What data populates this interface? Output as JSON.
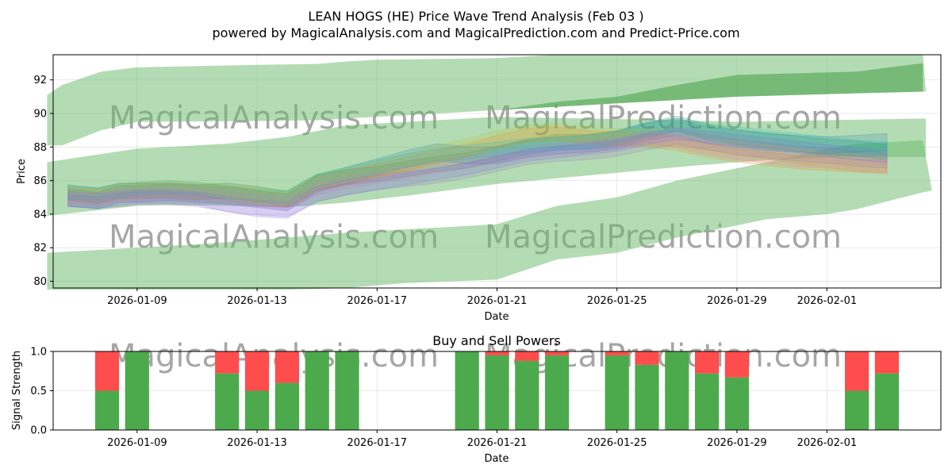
{
  "chart_data": [
    {
      "type": "area",
      "title": "LEAN HOGS (HE) Price Wave Trend Analysis (Feb 03 )",
      "subtitle": "powered by MagicalAnalysis.com and MagicalPrediction.com and Predict-Price.com",
      "xlabel": "Date",
      "ylabel": "Price",
      "xlim": [
        -2.8,
        26.8
      ],
      "ylim": [
        79.6,
        93.5
      ],
      "x_ticks": [
        {
          "label": "2026-01-09",
          "value": 0
        },
        {
          "label": "2026-01-13",
          "value": 4
        },
        {
          "label": "2026-01-17",
          "value": 8
        },
        {
          "label": "2026-01-21",
          "value": 12
        },
        {
          "label": "2026-01-25",
          "value": 16
        },
        {
          "label": "2026-01-29",
          "value": 20
        },
        {
          "label": "2026-02-01",
          "value": 23
        }
      ],
      "y_ticks": [
        80,
        82,
        84,
        86,
        88,
        90,
        92
      ],
      "watermarks": [
        "MagicalAnalysis.com",
        "MagicalPrediction.com",
        "MagicalAnalysis.com",
        "MagicalPrediction.com"
      ],
      "bands": [
        {
          "name": "upper-band",
          "color": "#6ab96a",
          "opacity": 0.5,
          "x": [
            -3,
            -2.5,
            -1.2,
            0,
            4,
            6,
            7,
            8,
            12,
            14,
            16,
            18,
            20,
            24,
            26.2,
            26.3
          ],
          "upper": [
            91.1,
            91.7,
            92.5,
            92.75,
            92.9,
            92.95,
            93.1,
            93.2,
            93.3,
            93.5,
            93.5,
            93.5,
            93.5,
            93.5,
            93.5,
            91.3
          ],
          "lower": [
            88.1,
            88.1,
            89.0,
            89.5,
            89.55,
            89.6,
            89.7,
            89.8,
            90.2,
            90.4,
            90.6,
            90.8,
            91.0,
            91.2,
            91.3,
            91.3
          ]
        },
        {
          "name": "upper-band-dark",
          "color": "#4ea34e",
          "opacity": 0.6,
          "x": [
            12,
            14,
            16,
            18,
            20,
            24,
            26.2
          ],
          "upper": [
            90.2,
            90.7,
            91.0,
            91.7,
            92.3,
            92.5,
            93.0
          ],
          "lower": [
            90.2,
            90.4,
            90.6,
            90.8,
            91.0,
            91.2,
            91.3
          ]
        },
        {
          "name": "middle-band",
          "color": "#6ab96a",
          "opacity": 0.5,
          "x": [
            -3,
            -1.5,
            0,
            1,
            3,
            5,
            7,
            9,
            12,
            15,
            18,
            20,
            23,
            26.3
          ],
          "upper": [
            87.1,
            87.5,
            87.9,
            88.0,
            88.2,
            88.6,
            89.3,
            89.5,
            89.8,
            89.7,
            89.6,
            89.5,
            89.6,
            89.7
          ],
          "lower": [
            83.9,
            84.2,
            84.5,
            84.55,
            84.5,
            84.4,
            84.7,
            85.1,
            85.8,
            86.3,
            86.8,
            87.1,
            87.4,
            87.4
          ]
        },
        {
          "name": "lower-band",
          "color": "#6ab96a",
          "opacity": 0.5,
          "x": [
            -3,
            -1,
            0,
            2,
            5,
            7,
            9,
            12,
            14,
            16,
            18,
            21,
            23,
            24,
            26.2,
            26.5
          ],
          "upper": [
            81.7,
            81.9,
            82.0,
            82.2,
            82.6,
            82.9,
            83.1,
            83.4,
            84.5,
            85.0,
            86.0,
            87.1,
            87.9,
            88.2,
            88.4,
            85.4
          ],
          "lower": [
            79.5,
            79.5,
            79.5,
            79.5,
            79.5,
            79.6,
            79.9,
            80.1,
            81.3,
            81.7,
            82.6,
            83.7,
            84.0,
            84.3,
            85.3,
            85.4
          ]
        }
      ],
      "trend_x": [
        -2.3,
        -1.3,
        -0.6,
        0,
        1,
        2,
        3,
        4,
        5,
        6,
        7,
        8,
        9,
        10,
        11,
        12,
        13,
        14,
        15,
        16,
        17,
        18,
        19,
        20,
        21,
        22,
        23,
        24,
        25
      ],
      "trend_series": [
        {
          "color": "#2e7d32",
          "spread": 0.45,
          "values": [
            85.3,
            85.1,
            85.4,
            85.4,
            85.4,
            85.3,
            85.4,
            85.2,
            84.9,
            85.9,
            86.2,
            86.4,
            86.7,
            87.0,
            87.2,
            87.6,
            88.0,
            88.3,
            88.3,
            88.5,
            89.0,
            89.4,
            88.9,
            88.6,
            88.4,
            88.2,
            88.0,
            87.9,
            87.7
          ]
        },
        {
          "color": "#1f77b4",
          "spread": 0.5,
          "values": [
            85.0,
            84.8,
            85.2,
            85.2,
            85.3,
            85.2,
            85.1,
            84.9,
            84.7,
            85.8,
            86.3,
            86.8,
            87.3,
            87.7,
            87.5,
            87.5,
            87.9,
            88.1,
            88.2,
            88.4,
            88.9,
            89.2,
            88.7,
            88.5,
            88.3,
            88.2,
            88.1,
            88.2,
            88.3
          ]
        },
        {
          "color": "#bcbd22",
          "spread": 0.5,
          "values": [
            85.1,
            85.0,
            85.3,
            85.4,
            85.5,
            85.4,
            85.2,
            85.1,
            84.9,
            85.9,
            86.3,
            86.7,
            87.1,
            87.6,
            88.0,
            88.5,
            88.8,
            88.9,
            88.7,
            88.6,
            88.6,
            88.5,
            88.3,
            88.0,
            87.8,
            87.5,
            87.3,
            87.1,
            87.0
          ]
        },
        {
          "color": "#ff7f0e",
          "spread": 0.4,
          "values": [
            85.2,
            85.1,
            85.3,
            85.4,
            85.5,
            85.4,
            85.3,
            85.0,
            84.8,
            85.8,
            86.2,
            86.6,
            87.0,
            87.4,
            87.8,
            88.3,
            88.7,
            88.8,
            88.6,
            88.5,
            88.4,
            88.2,
            87.8,
            87.5,
            87.3,
            87.1,
            87.0,
            86.9,
            86.8
          ]
        },
        {
          "color": "#9467bd",
          "spread": 0.45,
          "values": [
            84.9,
            84.8,
            84.9,
            85.0,
            85.0,
            84.9,
            84.6,
            84.4,
            84.3,
            85.2,
            85.6,
            85.9,
            86.1,
            86.3,
            86.6,
            87.0,
            87.4,
            87.6,
            87.7,
            87.9,
            88.3,
            88.6,
            88.3,
            88.0,
            87.8,
            87.6,
            87.5,
            87.3,
            87.2
          ]
        },
        {
          "color": "#e377c2",
          "spread": 0.35,
          "values": [
            85.0,
            84.9,
            85.1,
            85.1,
            85.2,
            85.1,
            85.0,
            84.8,
            84.6,
            85.5,
            85.9,
            86.2,
            86.5,
            86.8,
            87.1,
            87.4,
            87.7,
            87.9,
            88.0,
            88.2,
            88.6,
            88.3,
            87.9,
            87.6,
            87.4,
            87.2,
            87.1,
            86.9,
            86.8
          ]
        },
        {
          "color": "#17becf",
          "spread": 0.4,
          "values": [
            85.3,
            85.2,
            85.4,
            85.5,
            85.6,
            85.5,
            85.3,
            85.1,
            85.0,
            86.0,
            86.4,
            86.8,
            87.2,
            87.5,
            87.7,
            87.9,
            88.1,
            88.2,
            88.3,
            88.6,
            89.1,
            89.3,
            89.0,
            88.8,
            88.6,
            88.4,
            88.2,
            88.0,
            87.9
          ]
        },
        {
          "color": "#7b68ee",
          "spread": 0.35,
          "values": [
            84.8,
            84.7,
            84.9,
            85.0,
            85.0,
            84.9,
            84.5,
            84.2,
            84.1,
            85.1,
            85.5,
            85.8,
            86.1,
            86.4,
            86.7,
            87.1,
            87.5,
            87.7,
            87.9,
            88.1,
            88.5,
            88.8,
            88.6,
            88.4,
            88.2,
            88.0,
            87.8,
            87.6,
            87.4
          ]
        }
      ]
    },
    {
      "type": "bar",
      "title": "Buy and Sell Powers",
      "xlabel": "Date",
      "ylabel": "Signal Strength",
      "ylim": [
        0,
        1
      ],
      "xlim": [
        -2.8,
        26.8
      ],
      "y_ticks": [
        "0.0",
        "0.5",
        "1.0"
      ],
      "x_ticks": [
        {
          "label": "2026-01-09",
          "value": 0
        },
        {
          "label": "2026-01-13",
          "value": 4
        },
        {
          "label": "2026-01-17",
          "value": 8
        },
        {
          "label": "2026-01-21",
          "value": 12
        },
        {
          "label": "2026-01-25",
          "value": 16
        },
        {
          "label": "2026-01-29",
          "value": 20
        },
        {
          "label": "2026-02-01",
          "value": 23
        }
      ],
      "series": [
        {
          "name": "Buy",
          "color": "#4caa4c"
        },
        {
          "name": "Sell",
          "color": "#ff4c4c"
        }
      ],
      "x": [
        -1,
        0,
        3,
        4,
        5,
        6,
        7,
        11,
        12,
        13,
        14,
        16,
        17,
        18,
        19,
        20,
        24,
        25
      ],
      "buy": [
        0.5,
        1.0,
        0.72,
        0.5,
        0.6,
        1.0,
        1.0,
        1.0,
        0.95,
        0.88,
        0.95,
        0.95,
        0.83,
        1.0,
        0.72,
        0.67,
        0.5,
        0.72
      ]
    }
  ]
}
